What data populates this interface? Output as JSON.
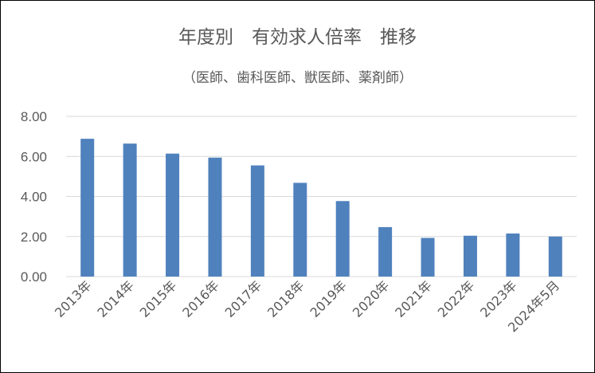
{
  "chart_data": {
    "type": "bar",
    "title": "年度別　有効求人倍率　推移",
    "subtitle": "（医師、歯科医師、獣医師、薬剤師）",
    "categories": [
      "2013年",
      "2014年",
      "2015年",
      "2016年",
      "2017年",
      "2018年",
      "2019年",
      "2020年",
      "2021年",
      "2022年",
      "2023年",
      "2024年5月"
    ],
    "values": [
      6.88,
      6.64,
      6.14,
      5.94,
      5.55,
      4.68,
      3.77,
      2.47,
      1.93,
      2.04,
      2.15,
      2.0
    ],
    "ylim": [
      0,
      8
    ],
    "yticks": [
      "0.00",
      "2.00",
      "4.00",
      "6.00",
      "8.00"
    ],
    "grid": true,
    "legend": "none",
    "bar_color": "#4f81bd",
    "grid_color": "#d9d9d9"
  }
}
